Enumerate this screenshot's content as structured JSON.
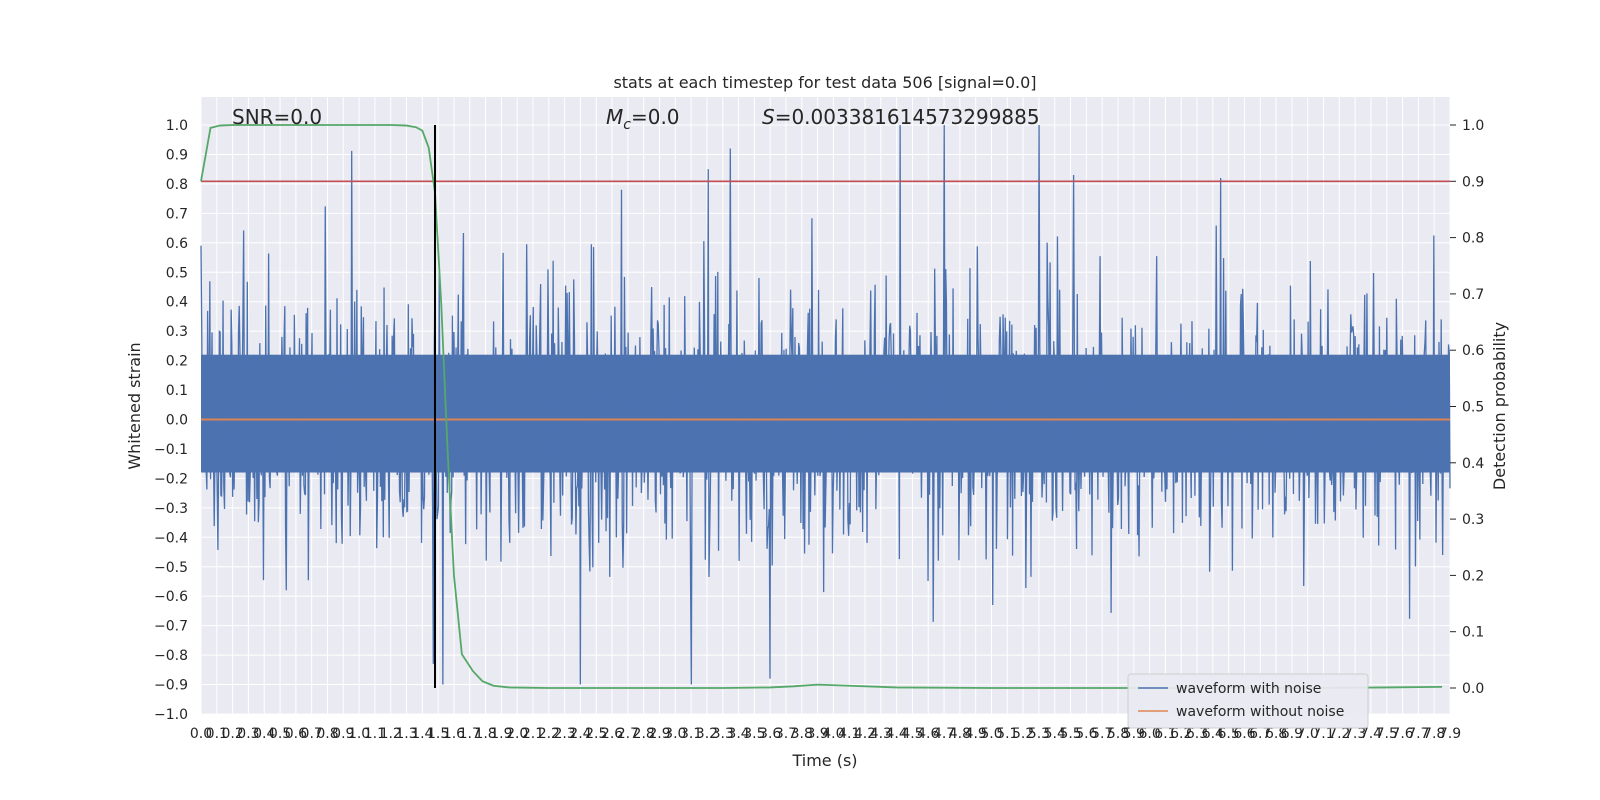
{
  "chart_data": {
    "type": "line",
    "title": "stats at each timestep for test data 506 [signal=0.0]",
    "xlabel": "Time (s)",
    "ylabel": "Whitened strain",
    "y2label": "Detection probability",
    "xlim": [
      0.0,
      7.9
    ],
    "ylim": [
      -1.0,
      1.0
    ],
    "y2lim": [
      0.0,
      1.0
    ],
    "x_tick_labels": [
      "0.0",
      "0.1",
      "0.2",
      "0.3",
      "0.4",
      "0.5",
      "0.6",
      "0.7",
      "0.8",
      "0.9",
      "1.0",
      "1.1",
      "1.2",
      "1.3",
      "1.4",
      "1.5",
      "1.6",
      "1.7",
      "1.8",
      "1.9",
      "2.0",
      "2.1",
      "2.2",
      "2.3",
      "2.4",
      "2.5",
      "2.6",
      "2.7",
      "2.8",
      "2.9",
      "3.0",
      "3.1",
      "3.2",
      "3.3",
      "3.4",
      "3.5",
      "3.6",
      "3.7",
      "3.8",
      "3.9",
      "4.0",
      "4.1",
      "4.2",
      "4.3",
      "4.4",
      "4.5",
      "4.6",
      "4.7",
      "4.8",
      "4.9",
      "5.0",
      "5.1",
      "5.2",
      "5.3",
      "5.4",
      "5.5",
      "5.6",
      "5.7",
      "5.8",
      "5.9",
      "6.0",
      "6.1",
      "6.2",
      "6.3",
      "6.4",
      "6.5",
      "6.6",
      "6.7",
      "6.8",
      "6.9",
      "7.0",
      "7.1",
      "7.2",
      "7.3",
      "7.4",
      "7.5",
      "7.6",
      "7.7",
      "7.8",
      "7.9"
    ],
    "y_tick_labels": [
      "1.0",
      "0.9",
      "0.8",
      "0.7",
      "0.6",
      "0.5",
      "0.4",
      "0.3",
      "0.2",
      "0.1",
      "0.0",
      "−0.1",
      "−0.2",
      "−0.3",
      "−0.4",
      "−0.5",
      "−0.6",
      "−0.7",
      "−0.8",
      "−0.9",
      "−1.0"
    ],
    "y2_tick_labels": [
      "1.0",
      "0.9",
      "0.8",
      "0.7",
      "0.6",
      "0.5",
      "0.4",
      "0.3",
      "0.2",
      "0.1",
      "0.0"
    ],
    "annotations": {
      "snr": "SNR=0.0",
      "mc_symbol": "M",
      "mc_subscript": "c",
      "mc_value": "=0.0",
      "s_symbol": "S",
      "s_value": "=0.003381614573299885"
    },
    "grid": true,
    "legend_position": "lower-right",
    "series": [
      {
        "name": "waveform with noise",
        "color": "#4c72b0",
        "description_style": "dense noise band",
        "noise_envelope": {
          "max_positive": 1.0,
          "max_negative": -0.9,
          "typical_positive": 0.5,
          "typical_negative": -0.5
        },
        "peaks": [
          {
            "x": 2.66,
            "y": 0.78
          },
          {
            "x": 3.21,
            "y": 0.85
          },
          {
            "x": 3.35,
            "y": 0.92
          },
          {
            "x": 4.42,
            "y": 1.0
          },
          {
            "x": 4.7,
            "y": 1.0
          },
          {
            "x": 5.3,
            "y": 1.0
          },
          {
            "x": 5.52,
            "y": 0.83
          },
          {
            "x": 6.45,
            "y": 0.82
          },
          {
            "x": 2.4,
            "y": -0.9
          },
          {
            "x": 3.1,
            "y": -0.9
          },
          {
            "x": 3.6,
            "y": -0.88
          },
          {
            "x": 1.47,
            "y": -0.83
          }
        ]
      },
      {
        "name": "waveform without noise",
        "color": "#dd8452",
        "x": [
          0.0,
          7.9
        ],
        "y": [
          0.0,
          0.0
        ]
      },
      {
        "name": "",
        "color": "#55a868",
        "axis": "y2",
        "x": [
          0.0,
          0.06,
          0.12,
          0.2,
          0.4,
          0.8,
          1.2,
          1.3,
          1.36,
          1.4,
          1.44,
          1.48,
          1.52,
          1.56,
          1.6,
          1.65,
          1.72,
          1.78,
          1.85,
          1.95,
          2.2,
          2.8,
          3.3,
          3.6,
          3.75,
          3.9,
          4.1,
          4.4,
          5.0,
          6.0,
          7.0,
          7.5,
          7.85
        ],
        "y": [
          0.9,
          0.995,
          0.999,
          1.0,
          1.0,
          1.0,
          1.0,
          0.999,
          0.996,
          0.99,
          0.96,
          0.88,
          0.68,
          0.42,
          0.2,
          0.06,
          0.03,
          0.012,
          0.004,
          0.001,
          0.0,
          0.0,
          0.0,
          0.001,
          0.003,
          0.006,
          0.004,
          0.001,
          0.0,
          0.0,
          0.0,
          0.001,
          0.002
        ]
      }
    ],
    "threshold_line": {
      "axis": "y2",
      "value": 0.9,
      "color": "#c44e52"
    },
    "vertical_marker": {
      "x": 1.48,
      "color": "#000000"
    }
  }
}
